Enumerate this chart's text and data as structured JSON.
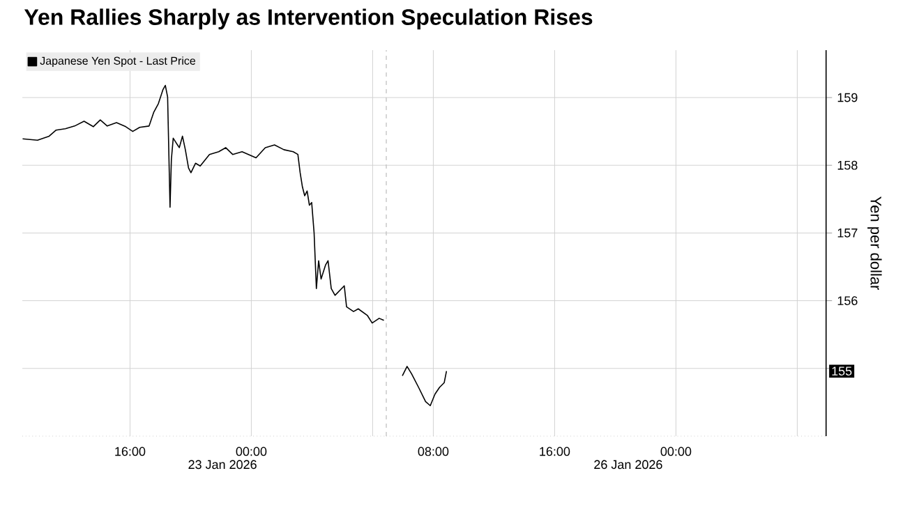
{
  "chart_data": [
    {
      "type": "line",
      "title": "Yen Rallies Sharply as Intervention Speculation Rises",
      "annotations": [
        "23 Jan 2026"
      ],
      "xlim": [
        8.9,
        32.9
      ],
      "ylim": [
        154.0,
        159.7
      ],
      "xticks": [
        {
          "value": 16,
          "label": "16:00"
        },
        {
          "value": 24,
          "label": "00:00"
        },
        {
          "value": 32,
          "label": null
        }
      ],
      "yticks": [
        155,
        156,
        157,
        158,
        159
      ],
      "tick_labels": "x",
      "grid": true,
      "legend": "top left",
      "marker": "none",
      "line_style": "solid",
      "ref_lines": [
        {
          "axis": "x",
          "value": 32.9,
          "label": null,
          "color": "#9a9a9a",
          "line_style": "dashed"
        }
      ],
      "series": [
        {
          "name": "Japanese Yen Spot - Last Price",
          "color": "#000000",
          "x": [
            8.92,
            9.9,
            10.67,
            11.13,
            11.74,
            12.35,
            12.97,
            13.58,
            14.04,
            14.5,
            15.11,
            15.72,
            16.18,
            16.64,
            17.26,
            17.56,
            17.87,
            18.18,
            18.33,
            18.48,
            18.64,
            18.73,
            18.85,
            19.25,
            19.46,
            19.65,
            19.86,
            20.02,
            20.32,
            20.63,
            21.24,
            21.85,
            22.31,
            22.77,
            23.39,
            24.31,
            24.92,
            25.53,
            26.15,
            26.76,
            27.07,
            27.22,
            27.37,
            27.52,
            27.68,
            27.83,
            27.98,
            28.14,
            28.29,
            28.44,
            28.6,
            28.9,
            29.06,
            29.27,
            29.52,
            30.13,
            30.28,
            30.74,
            31.05,
            31.66,
            31.97,
            32.43,
            32.74
          ],
          "values": [
            158.39,
            158.37,
            158.43,
            158.52,
            158.54,
            158.58,
            158.65,
            158.57,
            158.67,
            158.58,
            158.63,
            158.57,
            158.5,
            158.56,
            158.58,
            158.78,
            158.91,
            159.12,
            159.18,
            159.01,
            157.38,
            158.09,
            158.4,
            158.26,
            158.43,
            158.23,
            157.96,
            157.89,
            158.03,
            157.99,
            158.16,
            158.2,
            158.26,
            158.16,
            158.2,
            158.11,
            158.26,
            158.3,
            158.23,
            158.2,
            158.16,
            157.89,
            157.68,
            157.55,
            157.62,
            157.41,
            157.45,
            157.0,
            156.18,
            156.59,
            156.32,
            156.53,
            156.59,
            156.18,
            156.08,
            156.22,
            155.91,
            155.84,
            155.88,
            155.78,
            155.67,
            155.74,
            155.71
          ]
        }
      ]
    },
    {
      "type": "line",
      "ylabel": "Yen per dollar",
      "annotations": [
        "26 Jan 2026",
        "155"
      ],
      "xlim": [
        4.9,
        33.9
      ],
      "ylim": [
        154.0,
        159.7
      ],
      "xticks": [
        {
          "value": 8,
          "label": "08:00"
        },
        {
          "value": 16,
          "label": "16:00"
        },
        {
          "value": 24,
          "label": "00:00"
        },
        {
          "value": 32,
          "label": null
        }
      ],
      "yticks": [
        {
          "value": 155,
          "label": null
        },
        156,
        157,
        158,
        159
      ],
      "grid": true,
      "marker": "none",
      "line_style": "solid",
      "series": [
        {
          "color": "#000000",
          "x": [
            5.96,
            6.27,
            6.57,
            7.03,
            7.49,
            7.8,
            8.11,
            8.41,
            8.72,
            8.87
          ],
          "values": [
            154.89,
            155.03,
            154.92,
            154.72,
            154.51,
            154.45,
            154.62,
            154.72,
            154.79,
            154.96
          ]
        }
      ]
    }
  ]
}
